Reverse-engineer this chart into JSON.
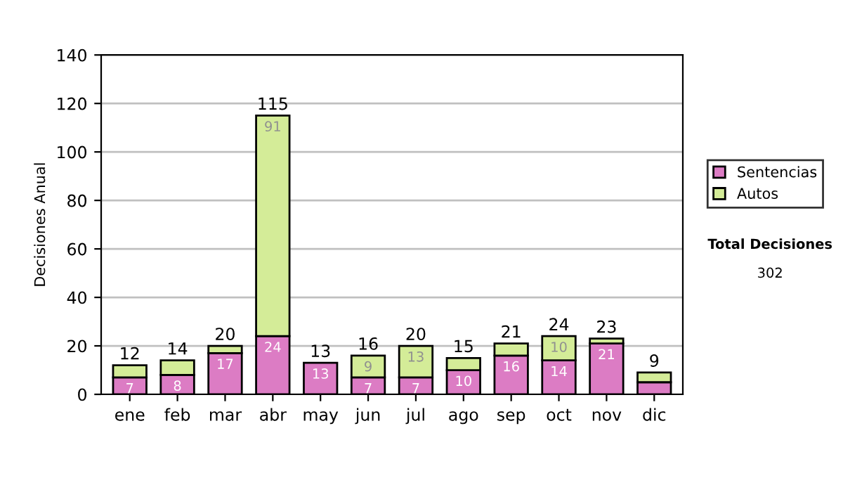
{
  "chart_data": {
    "type": "bar",
    "stacked": true,
    "ylabel": "Decisiones Anual",
    "categories": [
      "ene",
      "feb",
      "mar",
      "abr",
      "may",
      "jun",
      "jul",
      "ago",
      "sep",
      "oct",
      "nov",
      "dic"
    ],
    "series": [
      {
        "name": "Sentencias",
        "color": "#dc7cc4",
        "values": [
          7,
          8,
          17,
          24,
          13,
          7,
          7,
          10,
          16,
          14,
          21,
          5
        ],
        "value_labels": [
          "7",
          "8",
          "17",
          "24",
          "13",
          "7",
          "7",
          "10",
          "16",
          "14",
          "21",
          null
        ]
      },
      {
        "name": "Autos",
        "color": "#d4ec98",
        "values": [
          5,
          6,
          3,
          91,
          null,
          9,
          13,
          5,
          5,
          10,
          2,
          4
        ],
        "value_labels": [
          null,
          null,
          null,
          "91",
          null,
          "9",
          "13",
          null,
          null,
          "10",
          null,
          null
        ]
      }
    ],
    "totals": [
      "12",
      "14",
      "20",
      "115",
      "13",
      "16",
      "20",
      "15",
      "21",
      "24",
      "23",
      "9"
    ],
    "ylim": [
      0,
      140
    ],
    "yticks": [
      0,
      20,
      40,
      60,
      80,
      100,
      120,
      140
    ],
    "grid": "y",
    "legend": "right",
    "annotations": [
      "Total Decisiones",
      "302"
    ]
  }
}
